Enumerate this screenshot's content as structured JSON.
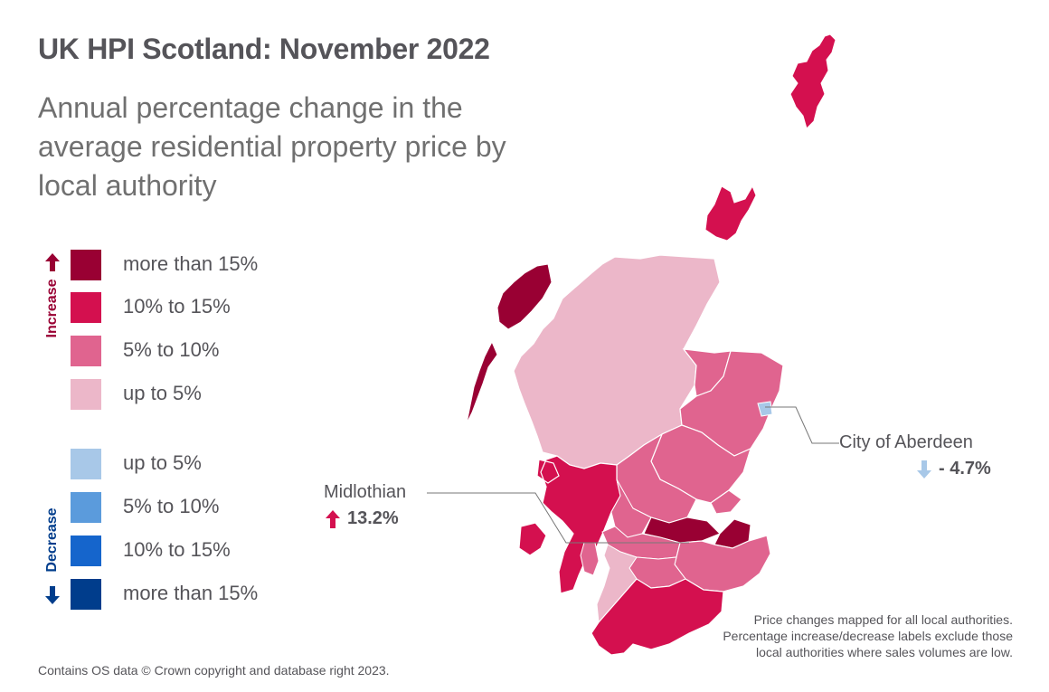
{
  "header": {
    "title": "UK HPI Scotland: November 2022",
    "subtitle": "Annual percentage change in the average residential property price by local authority"
  },
  "legend": {
    "increase_label": "Increase",
    "decrease_label": "Decrease",
    "increase_items": [
      {
        "label": "more than 15%",
        "color": "#990033"
      },
      {
        "label": "10% to 15%",
        "color": "#d4104f"
      },
      {
        "label": "5% to 10%",
        "color": "#e0648f"
      },
      {
        "label": "up to 5%",
        "color": "#ecb7c9"
      }
    ],
    "decrease_items": [
      {
        "label": "up to 5%",
        "color": "#a8c8e8"
      },
      {
        "label": "5% to 10%",
        "color": "#5b9bdc"
      },
      {
        "label": "10% to 15%",
        "color": "#1565cc"
      },
      {
        "label": "more than 15%",
        "color": "#003d8c"
      }
    ],
    "increase_arrow_color": "#990033",
    "decrease_arrow_color": "#003d8c"
  },
  "callouts": {
    "aberdeen": {
      "name": "City of Aberdeen",
      "value": "- 4.7%",
      "direction": "down",
      "arrow_color": "#a8c8e8"
    },
    "midlothian": {
      "name": "Midlothian",
      "value": "13.2%",
      "direction": "up",
      "arrow_color": "#d4104f"
    }
  },
  "note": "Price changes mapped for all local authorities. Percentage increase/decrease labels exclude those local authorities where sales volumes are low.",
  "footer": "Contains OS data © Crown copyright and database right 2023."
}
